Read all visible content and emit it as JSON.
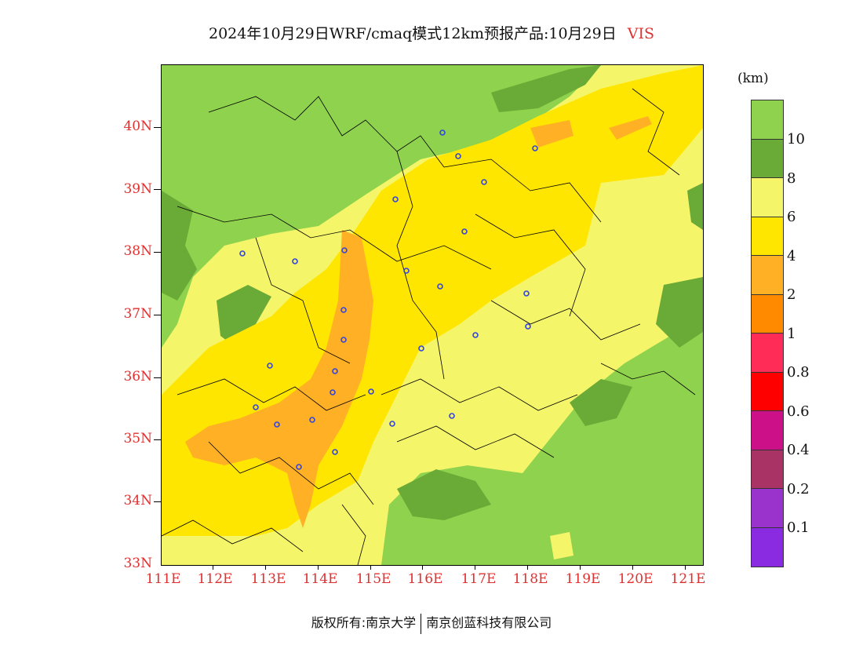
{
  "title": {
    "text": "2024年10月29日WRF/cmaq模式12km预报产品:10月29日",
    "variable": "VIS"
  },
  "colorbar": {
    "unit": "(km)",
    "colors": [
      "#8fd24e",
      "#6aaa37",
      "#f5f56a",
      "#ffe600",
      "#ffb025",
      "#ff8a00",
      "#ff2c58",
      "#ff0000",
      "#cc1188",
      "#aa3366",
      "#9933cc",
      "#8a2be2"
    ],
    "labels": [
      "10",
      "8",
      "6",
      "4",
      "2",
      "1",
      "0.8",
      "0.6",
      "0.4",
      "0.2",
      "0.1"
    ]
  },
  "axes": {
    "lat_labels": [
      "40N",
      "39N",
      "38N",
      "37N",
      "36N",
      "35N",
      "34N",
      "33N"
    ],
    "lon_labels": [
      "111E",
      "112E",
      "113E",
      "114E",
      "115E",
      "116E",
      "117E",
      "118E",
      "119E",
      "120E",
      "121E"
    ]
  },
  "footer": {
    "copyright": "版权所有:南京大学",
    "company": "南京创蓝科技有限公司"
  }
}
